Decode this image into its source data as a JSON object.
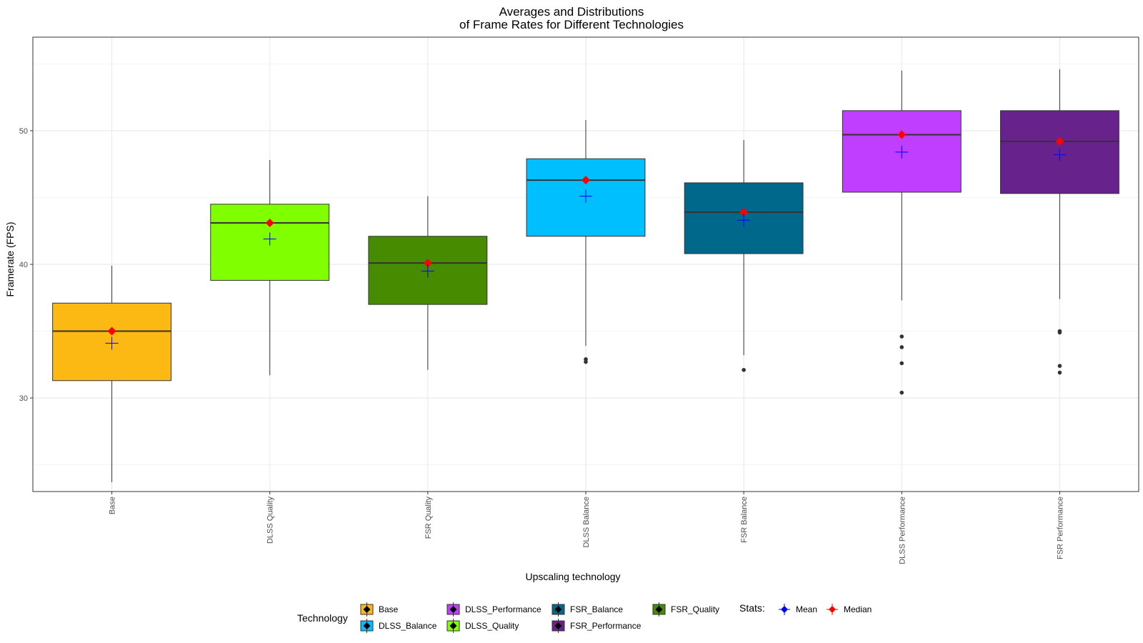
{
  "chart_data": {
    "type": "box",
    "title_line1": "Averages and Distributions",
    "title_line2": "of Frame Rates for Different Technologies",
    "xlabel": "Upscaling technology",
    "ylabel": "Framerate (FPS)",
    "ylim": [
      23,
      57
    ],
    "y_ticks": [
      30,
      40,
      50
    ],
    "y_tick_labels": [
      "30",
      "40",
      "50"
    ],
    "grid": true,
    "legend_position": "bottom",
    "categories": [
      "Base",
      "DLSS Quality",
      "FSR Quality",
      "DLSS Balance",
      "FSR Balance",
      "DLSS Performance",
      "FSR Performance"
    ],
    "series": [
      {
        "category": "Base",
        "technology": "Base",
        "color": "#FDB913",
        "q1": 31.3,
        "median": 35.0,
        "q3": 37.1,
        "whisker_low": 23.7,
        "whisker_high": 39.9,
        "mean": 34.1,
        "outliers": []
      },
      {
        "category": "DLSS Quality",
        "technology": "DLSS_Quality",
        "color": "#7FFF00",
        "q1": 38.8,
        "median": 43.1,
        "q3": 44.5,
        "whisker_low": 31.7,
        "whisker_high": 47.8,
        "mean": 41.9,
        "outliers": []
      },
      {
        "category": "FSR Quality",
        "technology": "FSR_Quality",
        "color": "#468B00",
        "q1": 37.0,
        "median": 40.1,
        "q3": 42.1,
        "whisker_low": 32.1,
        "whisker_high": 45.1,
        "mean": 39.5,
        "outliers": []
      },
      {
        "category": "DLSS Balance",
        "technology": "DLSS_Balance",
        "color": "#00BFFF",
        "q1": 42.1,
        "median": 46.3,
        "q3": 47.9,
        "whisker_low": 33.9,
        "whisker_high": 50.8,
        "mean": 45.1,
        "outliers": [
          32.9,
          32.7
        ]
      },
      {
        "category": "FSR Balance",
        "technology": "FSR_Balance",
        "color": "#00688B",
        "q1": 40.8,
        "median": 43.9,
        "q3": 46.1,
        "whisker_low": 33.2,
        "whisker_high": 49.3,
        "mean": 43.3,
        "outliers": [
          32.1
        ]
      },
      {
        "category": "DLSS Performance",
        "technology": "DLSS_Performance",
        "color": "#BF3EFF",
        "q1": 45.4,
        "median": 49.7,
        "q3": 51.5,
        "whisker_low": 37.3,
        "whisker_high": 54.5,
        "mean": 48.4,
        "outliers": [
          34.6,
          33.8,
          32.6,
          30.4
        ]
      },
      {
        "category": "FSR Performance",
        "technology": "FSR_Performance",
        "color": "#68228B",
        "q1": 45.3,
        "median": 49.2,
        "q3": 51.5,
        "whisker_low": 37.4,
        "whisker_high": 54.6,
        "mean": 48.2,
        "outliers": [
          35.0,
          34.9,
          32.4,
          31.9
        ]
      }
    ],
    "stat_colors": {
      "mean": "#0000FF",
      "median": "#FF0000"
    }
  },
  "legend": {
    "technology_title": "Technology",
    "technology_items": [
      {
        "label": "Base",
        "color": "#FDB913"
      },
      {
        "label": "DLSS_Balance",
        "color": "#00BFFF"
      },
      {
        "label": "DLSS_Performance",
        "color": "#BF3EFF"
      },
      {
        "label": "DLSS_Quality",
        "color": "#7FFF00"
      },
      {
        "label": "FSR_Balance",
        "color": "#00688B"
      },
      {
        "label": "FSR_Performance",
        "color": "#68228B"
      },
      {
        "label": "FSR_Quality",
        "color": "#468B00"
      }
    ],
    "stats_title": "Stats:",
    "stats_items": [
      {
        "label": "Mean",
        "color": "#0000FF"
      },
      {
        "label": "Median",
        "color": "#FF0000"
      }
    ]
  }
}
